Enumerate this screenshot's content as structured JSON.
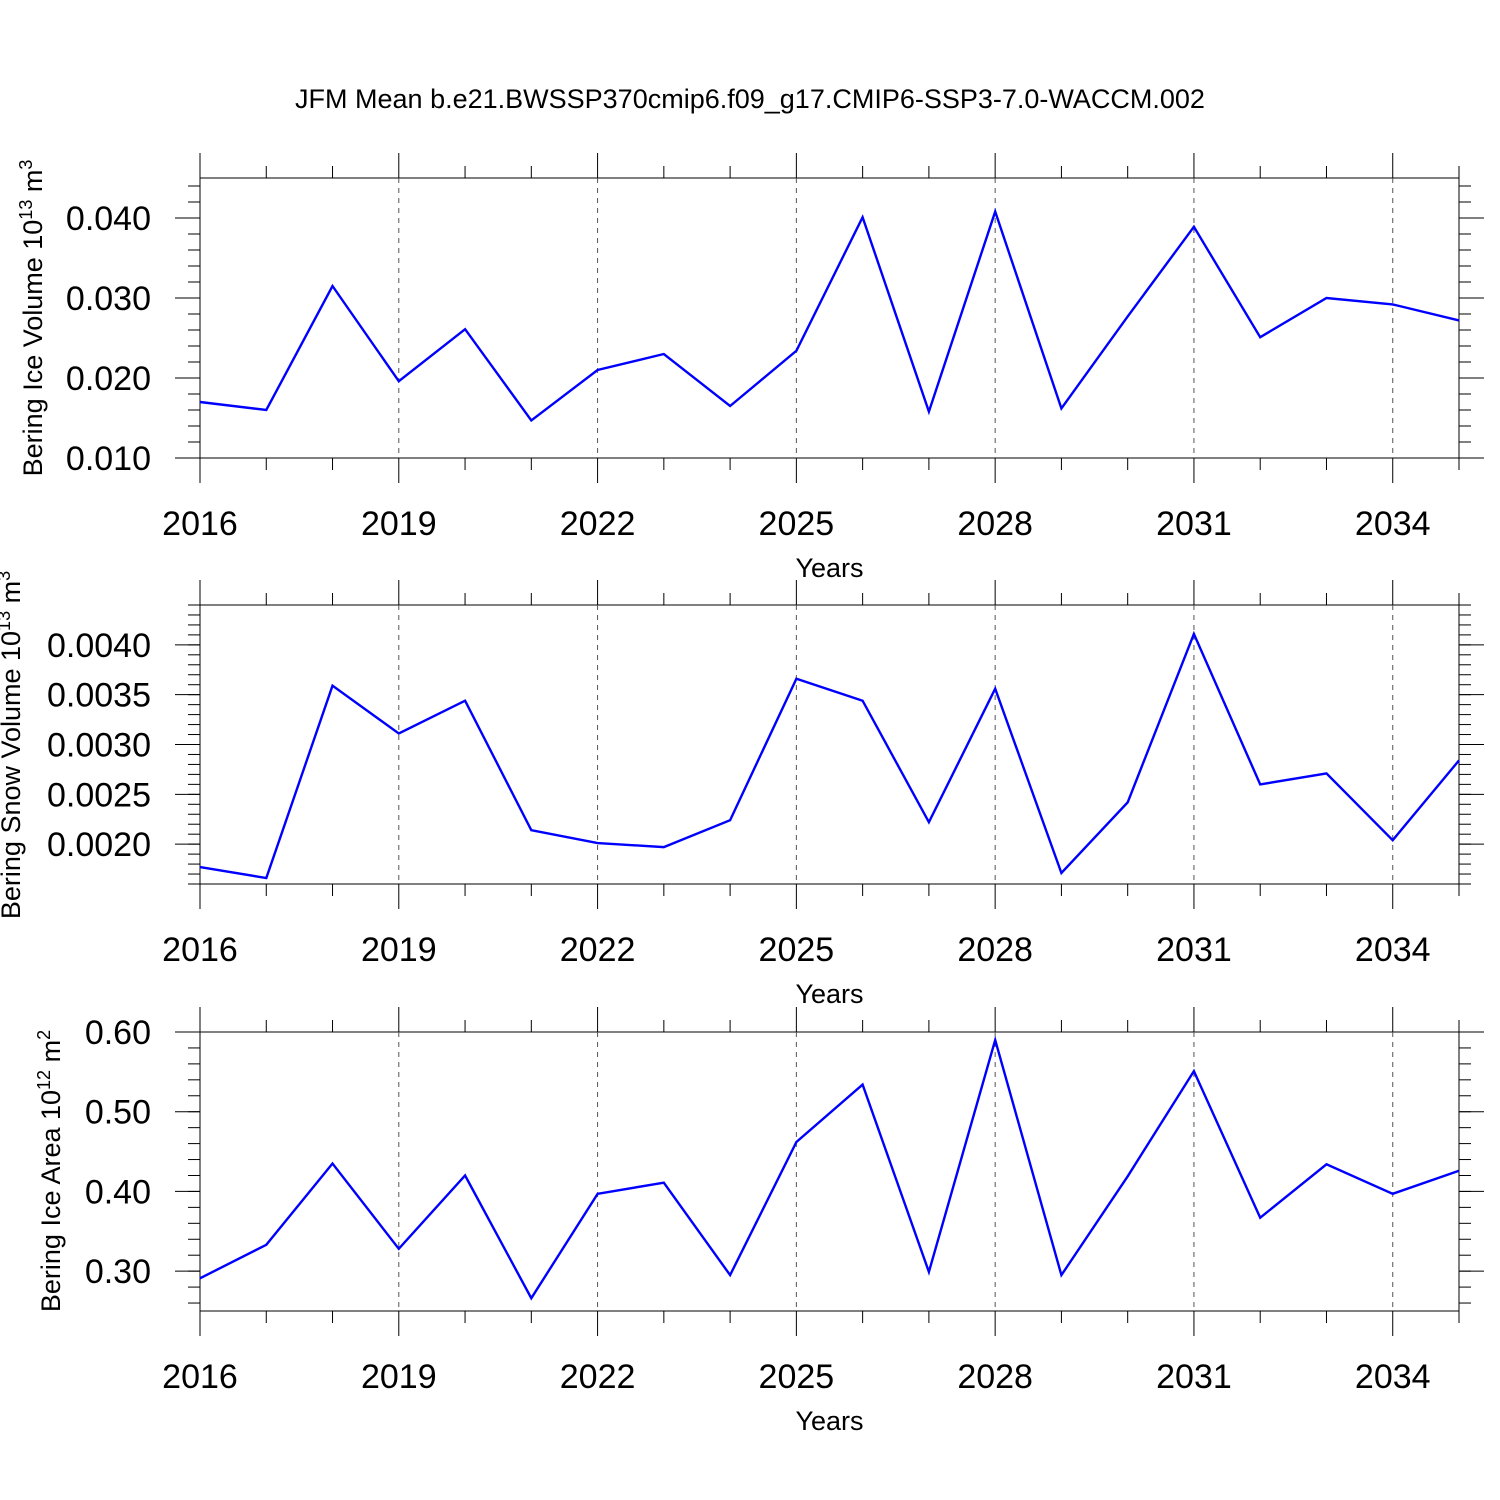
{
  "title": "JFM Mean b.e21.BWSSP370cmip6.f09_g17.CMIP6-SSP3-7.0-WACCM.002",
  "chart_data": [
    {
      "type": "line",
      "xlabel": "Years",
      "ylabel": {
        "main": "Bering Ice Volume 10",
        "sup": "13",
        "mid": " m",
        "sup2": "3"
      },
      "x": [
        2016,
        2017,
        2018,
        2019,
        2020,
        2021,
        2022,
        2023,
        2024,
        2025,
        2026,
        2027,
        2028,
        2029,
        2030,
        2031,
        2032,
        2033,
        2034,
        2035
      ],
      "xticks": [
        2016,
        2019,
        2022,
        2025,
        2028,
        2031,
        2034
      ],
      "xlim": [
        2016,
        2035
      ],
      "ylim": [
        0.01,
        0.045
      ],
      "yticks": [
        0.01,
        0.02,
        0.03,
        0.04
      ],
      "ytick_labels": [
        "0.010",
        "0.020",
        "0.030",
        "0.040"
      ],
      "series": [
        {
          "color": "#0000ff",
          "values": [
            0.017,
            0.016,
            0.0315,
            0.0196,
            0.0261,
            0.0147,
            0.021,
            0.023,
            0.0165,
            0.0234,
            0.0401,
            0.0158,
            0.0408,
            0.0162,
            0.0277,
            0.0389,
            0.0251,
            0.03,
            0.0292,
            0.0272
          ]
        }
      ],
      "grid": "vertical dashed at major ticks"
    },
    {
      "type": "line",
      "xlabel": "Years",
      "ylabel": {
        "main": "Bering Snow Volume 10",
        "sup": "13",
        "mid": " m",
        "sup2": "3"
      },
      "x": [
        2016,
        2017,
        2018,
        2019,
        2020,
        2021,
        2022,
        2023,
        2024,
        2025,
        2026,
        2027,
        2028,
        2029,
        2030,
        2031,
        2032,
        2033,
        2034,
        2035
      ],
      "xticks": [
        2016,
        2019,
        2022,
        2025,
        2028,
        2031,
        2034
      ],
      "xlim": [
        2016,
        2035
      ],
      "ylim": [
        0.0016,
        0.0044
      ],
      "yticks": [
        0.002,
        0.0025,
        0.003,
        0.0035,
        0.004
      ],
      "ytick_labels": [
        "0.0020",
        "0.0025",
        "0.0030",
        "0.0035",
        "0.0040"
      ],
      "series": [
        {
          "color": "#0000ff",
          "values": [
            0.00177,
            0.00166,
            0.00359,
            0.00311,
            0.00344,
            0.00214,
            0.00201,
            0.00197,
            0.00224,
            0.00366,
            0.00344,
            0.00222,
            0.00356,
            0.00171,
            0.00242,
            0.00411,
            0.0026,
            0.00271,
            0.00204,
            0.00284
          ]
        }
      ],
      "grid": "vertical dashed at major ticks"
    },
    {
      "type": "line",
      "xlabel": "Years",
      "ylabel": {
        "main": "Bering Ice Area 10",
        "sup": "12",
        "mid": " m",
        "sup2": "2"
      },
      "x": [
        2016,
        2017,
        2018,
        2019,
        2020,
        2021,
        2022,
        2023,
        2024,
        2025,
        2026,
        2027,
        2028,
        2029,
        2030,
        2031,
        2032,
        2033,
        2034,
        2035
      ],
      "xticks": [
        2016,
        2019,
        2022,
        2025,
        2028,
        2031,
        2034
      ],
      "xlim": [
        2016,
        2035
      ],
      "ylim": [
        0.25,
        0.6
      ],
      "yticks": [
        0.3,
        0.4,
        0.5,
        0.6
      ],
      "ytick_labels": [
        "0.30",
        "0.40",
        "0.50",
        "0.60"
      ],
      "series": [
        {
          "color": "#0000ff",
          "values": [
            0.291,
            0.333,
            0.435,
            0.328,
            0.42,
            0.266,
            0.397,
            0.411,
            0.295,
            0.462,
            0.534,
            0.299,
            0.59,
            0.295,
            0.419,
            0.551,
            0.367,
            0.434,
            0.397,
            0.426
          ]
        }
      ],
      "grid": "vertical dashed at major ticks"
    }
  ]
}
